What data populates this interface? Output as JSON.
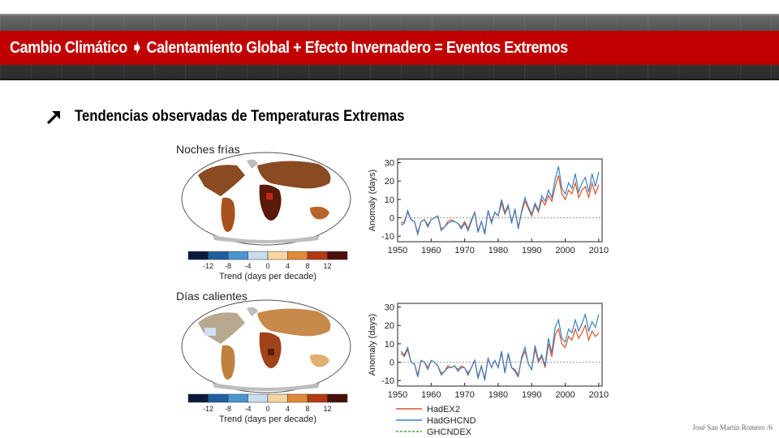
{
  "header": {
    "title": "Cambio Climático ➧ Calentamiento Global + Efecto Invernadero = Eventos Extremos",
    "band_color": "#c00000"
  },
  "subtitle": {
    "icon": "arrow-up-right-icon",
    "text": "Tendencias observadas de Temperaturas Extremas"
  },
  "panels": [
    {
      "label": "Noches frías",
      "map_icon": "world-map-icon"
    },
    {
      "label": "Días calientes",
      "map_icon": "world-map-icon"
    }
  ],
  "colorbar": {
    "label": "Trend (days per decade)",
    "ticks": [
      "-12",
      "-8",
      "-4",
      "0",
      "4",
      "8",
      "12"
    ],
    "colors": [
      "#0b1a3c",
      "#1f5f9f",
      "#4b95cf",
      "#c9ddf0",
      "#f8d4a0",
      "#e08a3a",
      "#b33a12",
      "#4a0f08"
    ]
  },
  "legend": [
    {
      "name": "HadEX2",
      "color": "#d9532a",
      "dash": false
    },
    {
      "name": "HadGHCND",
      "color": "#3b7fc4",
      "dash": false
    },
    {
      "name": "GHCNDEX",
      "color": "#4aa03c",
      "dash": true
    }
  ],
  "chart_data": [
    {
      "type": "line",
      "ylabel": "Anomaly (days)",
      "xlabel": "",
      "xlim": [
        1950,
        2011
      ],
      "ylim": [
        -13,
        32
      ],
      "xticks": [
        1950,
        1960,
        1970,
        1980,
        1990,
        2000,
        2010
      ],
      "yticks": [
        -10,
        0,
        10,
        20,
        30
      ],
      "reference_line": 0,
      "x": [
        1951,
        1952,
        1953,
        1954,
        1955,
        1956,
        1957,
        1958,
        1959,
        1960,
        1961,
        1962,
        1963,
        1964,
        1965,
        1966,
        1967,
        1968,
        1969,
        1970,
        1971,
        1972,
        1973,
        1974,
        1975,
        1976,
        1977,
        1978,
        1979,
        1980,
        1981,
        1982,
        1983,
        1984,
        1985,
        1986,
        1987,
        1988,
        1989,
        1990,
        1991,
        1992,
        1993,
        1994,
        1995,
        1996,
        1997,
        1998,
        1999,
        2000,
        2001,
        2002,
        2003,
        2004,
        2005,
        2006,
        2007,
        2008,
        2009,
        2010
      ],
      "series": [
        {
          "name": "HadEX2",
          "values": [
            -3,
            -2,
            3,
            -1,
            -2,
            -8,
            -2,
            -1,
            -4,
            -1,
            0,
            1,
            -6,
            -5,
            -2,
            -1,
            -2,
            -3,
            -5,
            -2,
            -6,
            -1,
            3,
            -7,
            -2,
            -8,
            4,
            -2,
            3,
            1,
            8,
            2,
            6,
            -2,
            4,
            -5,
            3,
            9,
            5,
            1,
            7,
            3,
            10,
            7,
            12,
            9,
            17,
            23,
            13,
            10,
            15,
            13,
            19,
            11,
            15,
            17,
            11,
            19,
            13,
            18
          ]
        },
        {
          "name": "HadGHCND",
          "values": [
            -4,
            -3,
            4,
            -1,
            -2,
            -9,
            -2,
            -1,
            -5,
            -1,
            0,
            1,
            -7,
            -5,
            -3,
            -2,
            -2,
            -3,
            -6,
            -3,
            -7,
            -2,
            3,
            -8,
            -2,
            -9,
            4,
            -3,
            3,
            1,
            10,
            3,
            7,
            -3,
            5,
            -6,
            4,
            11,
            6,
            2,
            8,
            4,
            12,
            9,
            15,
            11,
            21,
            28,
            16,
            13,
            19,
            16,
            24,
            14,
            19,
            22,
            14,
            24,
            17,
            25
          ]
        },
        {
          "name": "GHCNDEX",
          "values": [
            null,
            null,
            null,
            null,
            null,
            null,
            null,
            null,
            null,
            null,
            null,
            null,
            null,
            null,
            null,
            null,
            null,
            null,
            null,
            null,
            null,
            null,
            null,
            null,
            null,
            null,
            null,
            null,
            null,
            null,
            null,
            null,
            null,
            null,
            null,
            null,
            null,
            null,
            null,
            null,
            null,
            null,
            null,
            null,
            null,
            null,
            null,
            null,
            null,
            null,
            null,
            null,
            null,
            null,
            null,
            null,
            null,
            null,
            null,
            null
          ]
        }
      ]
    },
    {
      "type": "line",
      "ylabel": "Anomaly (days)",
      "xlabel": "",
      "xlim": [
        1950,
        2011
      ],
      "ylim": [
        -13,
        32
      ],
      "xticks": [
        1950,
        1960,
        1970,
        1980,
        1990,
        2000,
        2010
      ],
      "yticks": [
        -10,
        0,
        10,
        20,
        30
      ],
      "reference_line": 0,
      "x": [
        1951,
        1952,
        1953,
        1954,
        1955,
        1956,
        1957,
        1958,
        1959,
        1960,
        1961,
        1962,
        1963,
        1964,
        1965,
        1966,
        1967,
        1968,
        1969,
        1970,
        1971,
        1972,
        1973,
        1974,
        1975,
        1976,
        1977,
        1978,
        1979,
        1980,
        1981,
        1982,
        1983,
        1984,
        1985,
        1986,
        1987,
        1988,
        1989,
        1990,
        1991,
        1992,
        1993,
        1994,
        1995,
        1996,
        1997,
        1998,
        1999,
        2000,
        2001,
        2002,
        2003,
        2004,
        2005,
        2006,
        2007,
        2008,
        2009,
        2010
      ],
      "series": [
        {
          "name": "HadEX2",
          "values": [
            5,
            3,
            7,
            0,
            -1,
            -7,
            1,
            0,
            -3,
            1,
            0,
            -2,
            -6,
            -5,
            -2,
            -3,
            -2,
            -4,
            -2,
            -3,
            -6,
            -3,
            1,
            -8,
            -2,
            -9,
            2,
            -3,
            1,
            -3,
            5,
            -5,
            4,
            -3,
            -4,
            -7,
            2,
            6,
            -1,
            -4,
            7,
            0,
            3,
            -3,
            10,
            3,
            15,
            18,
            10,
            8,
            14,
            12,
            18,
            13,
            16,
            20,
            12,
            17,
            14,
            16
          ]
        },
        {
          "name": "HadGHCND",
          "values": [
            6,
            4,
            8,
            0,
            -1,
            -8,
            1,
            0,
            -4,
            1,
            0,
            -2,
            -7,
            -5,
            -3,
            -3,
            -2,
            -5,
            -3,
            -3,
            -7,
            -3,
            1,
            -9,
            -2,
            -10,
            2,
            -3,
            1,
            -3,
            6,
            -6,
            5,
            -3,
            -5,
            -8,
            3,
            8,
            -1,
            -4,
            9,
            1,
            4,
            -2,
            13,
            5,
            19,
            23,
            13,
            11,
            18,
            16,
            23,
            17,
            21,
            26,
            17,
            22,
            19,
            26
          ]
        },
        {
          "name": "GHCNDEX",
          "values": [
            null,
            null,
            null,
            null,
            null,
            null,
            null,
            null,
            null,
            null,
            null,
            null,
            null,
            null,
            null,
            null,
            null,
            null,
            null,
            null,
            null,
            null,
            null,
            null,
            null,
            null,
            null,
            null,
            null,
            null,
            null,
            null,
            null,
            null,
            null,
            null,
            null,
            null,
            null,
            null,
            null,
            null,
            null,
            null,
            null,
            null,
            null,
            null,
            null,
            null,
            null,
            null,
            null,
            null,
            null,
            null,
            null,
            null,
            null,
            null
          ]
        }
      ]
    }
  ],
  "footer": "José San Martín Romero  /6"
}
